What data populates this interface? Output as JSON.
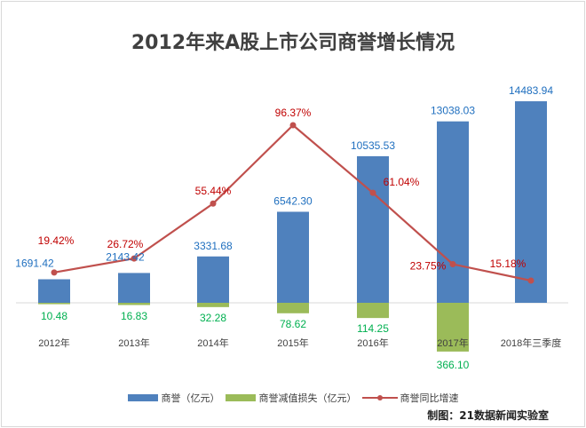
{
  "chart_data": {
    "type": "bar+line",
    "title": "2012年来A股上市公司商誉增长情况",
    "categories": [
      "2012年",
      "2013年",
      "2014年",
      "2015年",
      "2016年",
      "2017年",
      "2018年三季度"
    ],
    "series": [
      {
        "name": "商誉（亿元）",
        "type": "bar",
        "color": "#4f81bd",
        "values": [
          1691.42,
          2143.42,
          3331.68,
          6542.3,
          10535.53,
          13038.03,
          14483.94
        ],
        "labels": [
          "1691.42",
          "2143.42",
          "3331.68",
          "6542.30",
          "10535.53",
          "13038.03",
          "14483.94"
        ]
      },
      {
        "name": "商誉减值损失（亿元）",
        "type": "bar",
        "direction": "down",
        "color": "#9bbb59",
        "values": [
          10.48,
          16.83,
          32.28,
          78.62,
          114.25,
          366.1,
          null
        ],
        "labels": [
          "10.48",
          "16.83",
          "32.28",
          "78.62",
          "114.25",
          "366.10",
          ""
        ]
      },
      {
        "name": "商誉同比增速",
        "type": "line",
        "color": "#c0504d",
        "values": [
          19.42,
          26.72,
          55.44,
          96.37,
          61.04,
          23.75,
          15.18
        ],
        "labels": [
          "19.42%",
          "26.72%",
          "55.44%",
          "96.37%",
          "61.04%",
          "23.75%",
          "15.18%"
        ]
      }
    ],
    "legend_position": "bottom",
    "grid": false
  },
  "credit": "制图：21数据新闻实验室",
  "colors": {
    "bar_label": "#1f6fbf",
    "loss_label": "#00b050",
    "line_label": "#c00000"
  }
}
